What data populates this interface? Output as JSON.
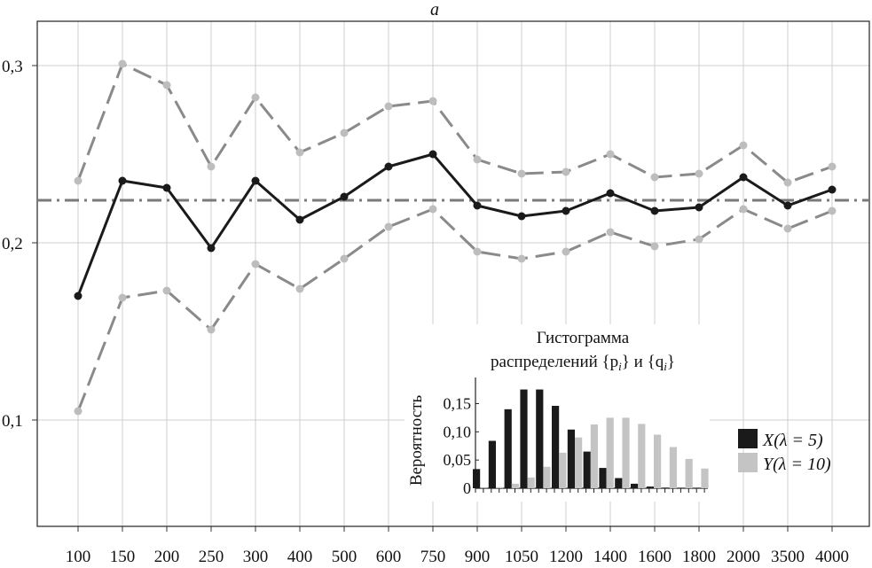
{
  "chart_data": [
    {
      "type": "line",
      "title": "a",
      "categories": [
        "100",
        "150",
        "200",
        "250",
        "300",
        "400",
        "500",
        "600",
        "750",
        "900",
        "1050",
        "1200",
        "1400",
        "1600",
        "1800",
        "2000",
        "3500",
        "4000"
      ],
      "yticks": [
        "0,1",
        "0,2",
        "0,3"
      ],
      "ylim": [
        0.04,
        0.325
      ],
      "grid": true,
      "reference_line": 0.224,
      "series": [
        {
          "role": "upper",
          "style": "dashed",
          "color": "#8a8a8a",
          "values": [
            0.235,
            0.301,
            0.289,
            0.243,
            0.282,
            0.251,
            0.262,
            0.277,
            0.28,
            0.247,
            0.239,
            0.24,
            0.25,
            0.237,
            0.239,
            0.255,
            0.234,
            0.243
          ]
        },
        {
          "role": "mean",
          "style": "solid",
          "color": "#1a1a1a",
          "values": [
            0.17,
            0.235,
            0.231,
            0.197,
            0.235,
            0.213,
            0.226,
            0.243,
            0.25,
            0.221,
            0.215,
            0.218,
            0.228,
            0.218,
            0.22,
            0.237,
            0.221,
            0.23
          ]
        },
        {
          "role": "lower",
          "style": "dashed",
          "color": "#8a8a8a",
          "values": [
            0.105,
            0.169,
            0.173,
            0.151,
            0.188,
            0.174,
            0.191,
            0.209,
            0.219,
            0.195,
            0.191,
            0.195,
            0.206,
            0.198,
            0.202,
            0.219,
            0.208,
            0.218
          ]
        }
      ]
    },
    {
      "type": "bar",
      "title_lines": [
        "Гистограмма",
        "распределений {p",
        "} и {q",
        "}"
      ],
      "subscript": "i",
      "ylabel": "Вероятность",
      "yticks": [
        "0",
        "0,05",
        "0,10",
        "0,15"
      ],
      "ylim": [
        0,
        0.19
      ],
      "series": [
        {
          "name": "X(λ = 5)",
          "color": "#1a1a1a",
          "values": [
            0.034,
            0.084,
            0.14,
            0.175,
            0.175,
            0.146,
            0.104,
            0.065,
            0.036,
            0.018,
            0.008,
            0.003,
            0.001,
            0.0003,
            0.0001
          ]
        },
        {
          "name": "Y(λ = 10)",
          "color": "#c4c4c4",
          "values": [
            0.0005,
            0.002,
            0.008,
            0.019,
            0.038,
            0.063,
            0.09,
            0.113,
            0.125,
            0.125,
            0.114,
            0.095,
            0.073,
            0.052,
            0.035
          ]
        }
      ]
    }
  ]
}
